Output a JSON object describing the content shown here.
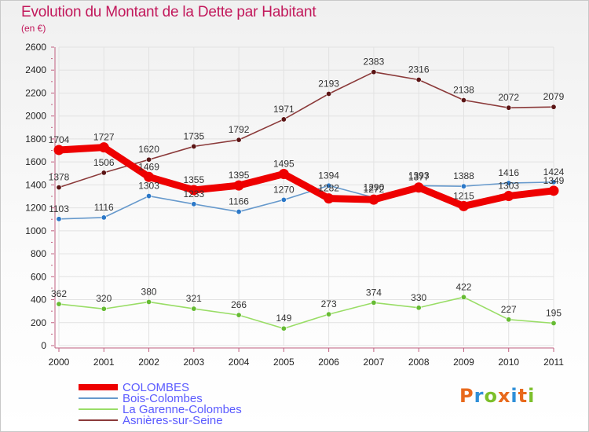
{
  "header": {
    "title": "Evolution du Montant de la Dette par Habitant",
    "subtitle": "(en €)"
  },
  "logo": {
    "text": "Proxiti",
    "colors": [
      "#e8691c",
      "#2f8fd8",
      "#7cbf2a",
      "#e8691c",
      "#2f8fd8",
      "#e8691c",
      "#7cbf2a"
    ]
  },
  "chart_data": {
    "type": "line",
    "title": "Evolution du Montant de la Dette par Habitant",
    "subtitle": "(en €)",
    "xlabel": "",
    "ylabel": "",
    "ylim": [
      0,
      2600
    ],
    "yticks": [
      0,
      200,
      400,
      600,
      800,
      1000,
      1200,
      1400,
      1600,
      1800,
      2000,
      2200,
      2400,
      2600
    ],
    "x": [
      "2000",
      "2001",
      "2002",
      "2003",
      "2004",
      "2005",
      "2006",
      "2007",
      "2008",
      "2009",
      "2010",
      "2011"
    ],
    "grid": true,
    "legend_position": "bottom-left",
    "series": [
      {
        "name": "COLOMBES",
        "color": "#ee0000",
        "marker": "#ee0000",
        "width": "thick",
        "values": [
          1704,
          1727,
          1469,
          1355,
          1395,
          1495,
          1282,
          1272,
          1377,
          1215,
          1303,
          1349
        ]
      },
      {
        "name": "Bois-Colombes",
        "color": "#6699cc",
        "marker": "#2b78c8",
        "width": "thin",
        "values": [
          1103,
          1116,
          1303,
          1233,
          1166,
          1270,
          1394,
          1290,
          1393,
          1388,
          1416,
          1424
        ]
      },
      {
        "name": "La Garenne-Colombes",
        "color": "#99dd66",
        "marker": "#66bb33",
        "width": "thin",
        "values": [
          362,
          320,
          380,
          321,
          266,
          149,
          273,
          374,
          330,
          422,
          227,
          195
        ]
      },
      {
        "name": "Asnières-sur-Seine",
        "color": "#8b3a3a",
        "marker": "#5a1414",
        "width": "thin",
        "values": [
          1378,
          1506,
          1620,
          1735,
          1792,
          1971,
          2193,
          2383,
          2316,
          2138,
          2072,
          2079
        ]
      }
    ]
  }
}
